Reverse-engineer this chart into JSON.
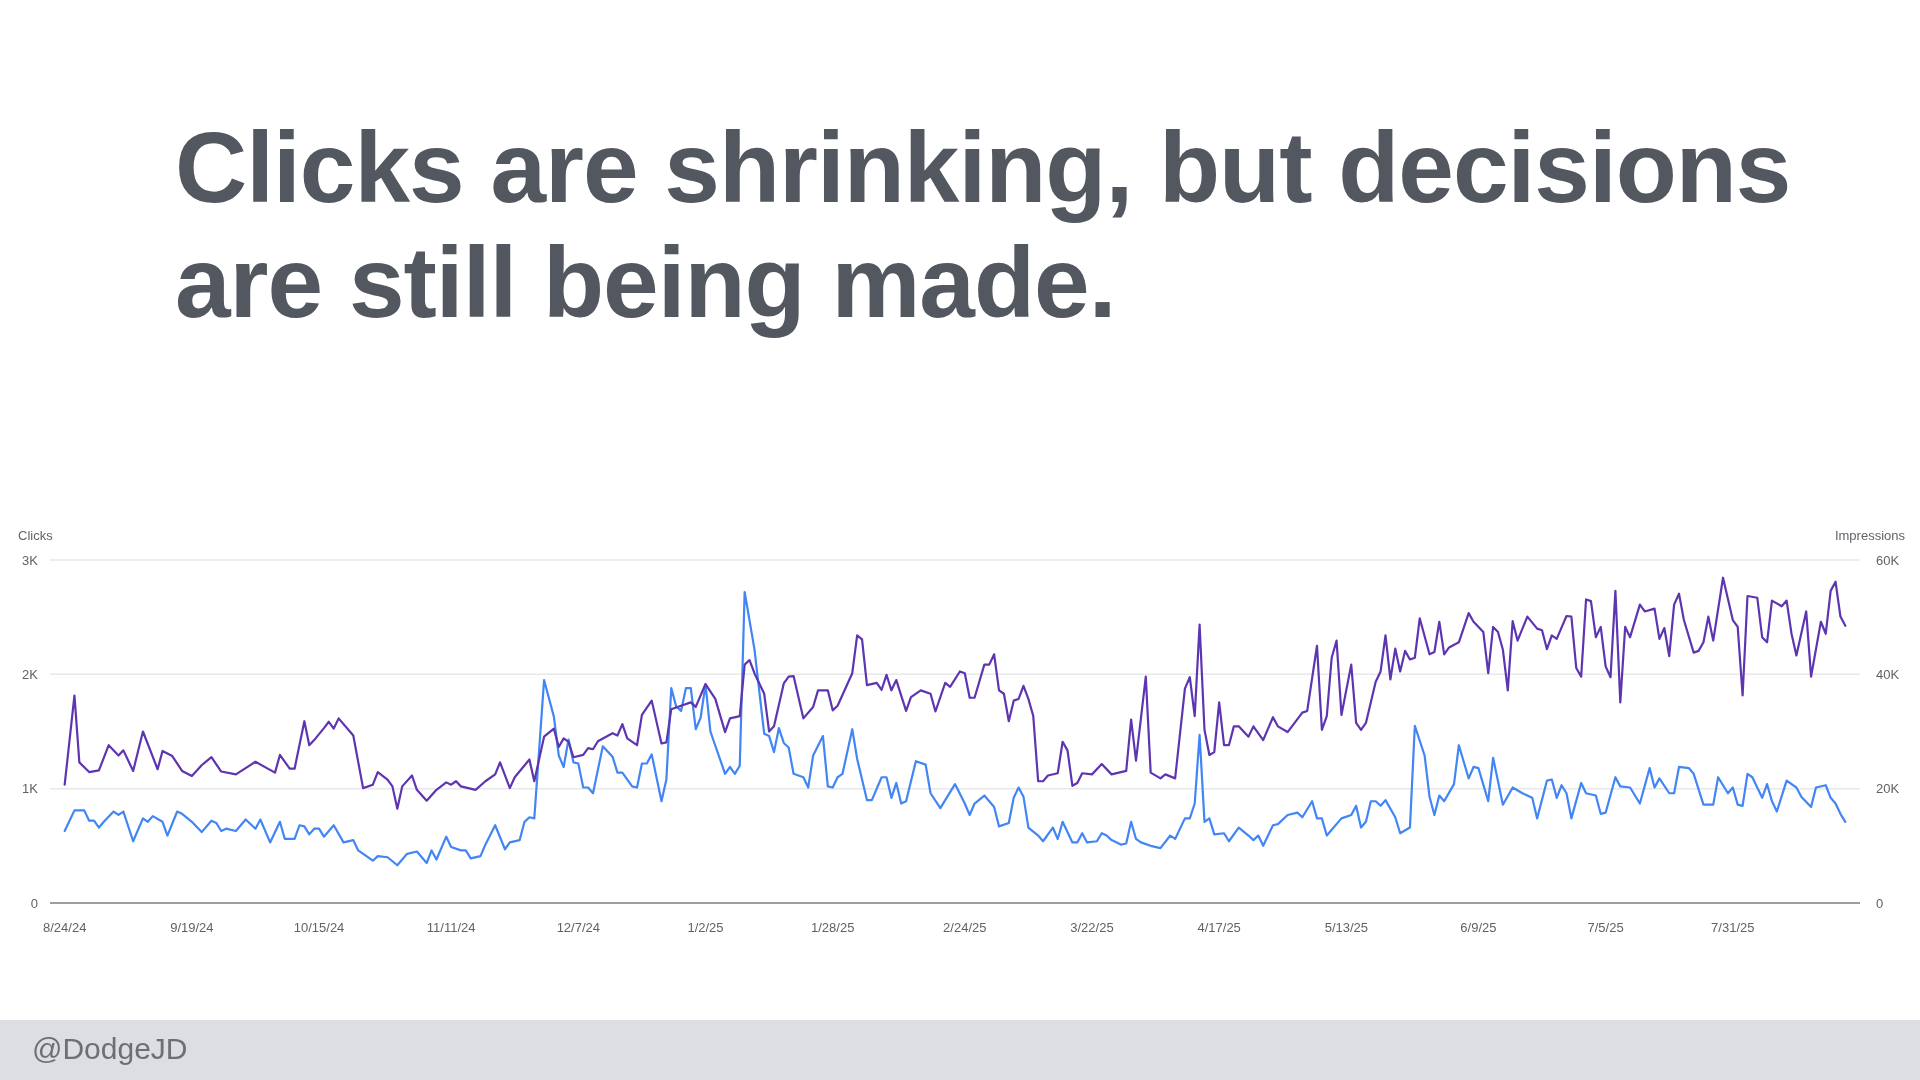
{
  "chart_data": {
    "type": "line",
    "title": "Clicks are shrinking, but decisions are still being made.",
    "ylabel": "Clicks",
    "y2label": "Impressions",
    "xlim": [
      "2024-08-21",
      "2025-08-26"
    ],
    "xticks": [
      {
        "value": "2024-08-24",
        "label": "8/24/24"
      },
      {
        "value": "2024-09-19",
        "label": "9/19/24"
      },
      {
        "value": "2024-10-15",
        "label": "10/15/24"
      },
      {
        "value": "2024-11-11",
        "label": "11/11/24"
      },
      {
        "value": "2024-12-07",
        "label": "12/7/24"
      },
      {
        "value": "2025-01-02",
        "label": "1/2/25"
      },
      {
        "value": "2025-01-28",
        "label": "1/28/25"
      },
      {
        "value": "2025-02-24",
        "label": "2/24/25"
      },
      {
        "value": "2025-03-22",
        "label": "3/22/25"
      },
      {
        "value": "2025-04-17",
        "label": "4/17/25"
      },
      {
        "value": "2025-05-13",
        "label": "5/13/25"
      },
      {
        "value": "2025-06-09",
        "label": "6/9/25"
      },
      {
        "value": "2025-07-05",
        "label": "7/5/25"
      },
      {
        "value": "2025-07-31",
        "label": "7/31/25"
      }
    ],
    "ylim": [
      0,
      3000
    ],
    "yticks": [
      0,
      {
        "value": 1000,
        "label": "1K"
      },
      {
        "value": 2000,
        "label": "2K"
      },
      {
        "value": 3000,
        "label": "3K"
      }
    ],
    "y2lim": [
      0,
      60000
    ],
    "y2ticks": [
      0,
      {
        "value": 20000,
        "label": "20K"
      },
      {
        "value": 40000,
        "label": "40K"
      },
      {
        "value": 60000,
        "label": "60K"
      }
    ],
    "grid": "y",
    "annotations": [
      "@DodgeJD"
    ],
    "series": [
      {
        "color": "#4285f4",
        "x": [
          "2024-08-24",
          "2024-08-26",
          "2024-08-28",
          "2024-08-29",
          "2024-08-30",
          "2024-08-31",
          "2024-09-01",
          "2024-09-03",
          "2024-09-04",
          "2024-09-05",
          "2024-09-07",
          "2024-09-09",
          "2024-09-10",
          "2024-09-11",
          "2024-09-13",
          "2024-09-14",
          "2024-09-16",
          "2024-09-17",
          "2024-09-19",
          "2024-09-21",
          "2024-09-23",
          "2024-09-24",
          "2024-09-25",
          "2024-09-26",
          "2024-09-28",
          "2024-09-30",
          "2024-10-02",
          "2024-10-03",
          "2024-10-05",
          "2024-10-07",
          "2024-10-08",
          "2024-10-10",
          "2024-10-11",
          "2024-10-12",
          "2024-10-13",
          "2024-10-14",
          "2024-10-15",
          "2024-10-16",
          "2024-10-18",
          "2024-10-20",
          "2024-10-22",
          "2024-10-23",
          "2024-10-26",
          "2024-10-27",
          "2024-10-29",
          "2024-10-31",
          "2024-11-02",
          "2024-11-04",
          "2024-11-06",
          "2024-11-07",
          "2024-11-08",
          "2024-11-10",
          "2024-11-11",
          "2024-11-13",
          "2024-11-14",
          "2024-11-15",
          "2024-11-17",
          "2024-11-18",
          "2024-11-20",
          "2024-11-22",
          "2024-11-23",
          "2024-11-25",
          "2024-11-26",
          "2024-11-27",
          "2024-11-28",
          "2024-11-30",
          "2024-12-02",
          "2024-12-03",
          "2024-12-04",
          "2024-12-05",
          "2024-12-06",
          "2024-12-07",
          "2024-12-08",
          "2024-12-09",
          "2024-12-10",
          "2024-12-12",
          "2024-12-14",
          "2024-12-15",
          "2024-12-16",
          "2024-12-18",
          "2024-12-19",
          "2024-12-20",
          "2024-12-21",
          "2024-12-22",
          "2024-12-24",
          "2024-12-25",
          "2024-12-26",
          "2024-12-27",
          "2024-12-28",
          "2024-12-29",
          "2024-12-30",
          "2024-12-31",
          "2025-01-01",
          "2025-01-02",
          "2025-01-03",
          "2025-01-06",
          "2025-01-07",
          "2025-01-08",
          "2025-01-09",
          "2025-01-10",
          "2025-01-12",
          "2025-01-14",
          "2025-01-15",
          "2025-01-16",
          "2025-01-17",
          "2025-01-18",
          "2025-01-19",
          "2025-01-20",
          "2025-01-22",
          "2025-01-23",
          "2025-01-24",
          "2025-01-26",
          "2025-01-27",
          "2025-01-28",
          "2025-01-29",
          "2025-01-30",
          "2025-02-01",
          "2025-02-02",
          "2025-02-04",
          "2025-02-05",
          "2025-02-07",
          "2025-02-08",
          "2025-02-09",
          "2025-02-10",
          "2025-02-11",
          "2025-02-12",
          "2025-02-14",
          "2025-02-16",
          "2025-02-17",
          "2025-02-19",
          "2025-02-20",
          "2025-02-22",
          "2025-02-24",
          "2025-02-25",
          "2025-02-26",
          "2025-02-28",
          "2025-03-02",
          "2025-03-03",
          "2025-03-05",
          "2025-03-06",
          "2025-03-07",
          "2025-03-08",
          "2025-03-09",
          "2025-03-11",
          "2025-03-12",
          "2025-03-14",
          "2025-03-15",
          "2025-03-16",
          "2025-03-18",
          "2025-03-19",
          "2025-03-20",
          "2025-03-21",
          "2025-03-23",
          "2025-03-24",
          "2025-03-25",
          "2025-03-26",
          "2025-03-28",
          "2025-03-29",
          "2025-03-30",
          "2025-03-31",
          "2025-04-01",
          "2025-04-03",
          "2025-04-05",
          "2025-04-07",
          "2025-04-08",
          "2025-04-10",
          "2025-04-11",
          "2025-04-12",
          "2025-04-13",
          "2025-04-14",
          "2025-04-15",
          "2025-04-16",
          "2025-04-18",
          "2025-04-19",
          "2025-04-21",
          "2025-04-23",
          "2025-04-24",
          "2025-04-25",
          "2025-04-26",
          "2025-04-28",
          "2025-04-29",
          "2025-05-01",
          "2025-05-03",
          "2025-05-04",
          "2025-05-06",
          "2025-05-07",
          "2025-05-08",
          "2025-05-09",
          "2025-05-12",
          "2025-05-14",
          "2025-05-15",
          "2025-05-16",
          "2025-05-17",
          "2025-05-18",
          "2025-05-19",
          "2025-05-20",
          "2025-05-21",
          "2025-05-23",
          "2025-05-24",
          "2025-05-26",
          "2025-05-27",
          "2025-05-29",
          "2025-05-30",
          "2025-05-31",
          "2025-06-01",
          "2025-06-02",
          "2025-06-04",
          "2025-06-05",
          "2025-06-07",
          "2025-06-08",
          "2025-06-09",
          "2025-06-11",
          "2025-06-12",
          "2025-06-14",
          "2025-06-16",
          "2025-06-18",
          "2025-06-20",
          "2025-06-21",
          "2025-06-23",
          "2025-06-24",
          "2025-06-25",
          "2025-06-26",
          "2025-06-27",
          "2025-06-28",
          "2025-06-30",
          "2025-07-01",
          "2025-07-03",
          "2025-07-04",
          "2025-07-05",
          "2025-07-07",
          "2025-07-08",
          "2025-07-10",
          "2025-07-12",
          "2025-07-14",
          "2025-07-15",
          "2025-07-16",
          "2025-07-18",
          "2025-07-19",
          "2025-07-20",
          "2025-07-22",
          "2025-07-23",
          "2025-07-25",
          "2025-07-27",
          "2025-07-28",
          "2025-07-30",
          "2025-07-31",
          "2025-08-01",
          "2025-08-02",
          "2025-08-03",
          "2025-08-04",
          "2025-08-06",
          "2025-08-07",
          "2025-08-08",
          "2025-08-09",
          "2025-08-11",
          "2025-08-13",
          "2025-08-14",
          "2025-08-16",
          "2025-08-17",
          "2025-08-19",
          "2025-08-20",
          "2025-08-21",
          "2025-08-22",
          "2025-08-23"
        ],
        "values": [
          630,
          810,
          810,
          720,
          720,
          660,
          710,
          800,
          770,
          800,
          540,
          740,
          710,
          760,
          710,
          590,
          800,
          780,
          710,
          620,
          720,
          700,
          630,
          650,
          630,
          730,
          650,
          730,
          530,
          710,
          560,
          560,
          680,
          670,
          600,
          650,
          650,
          580,
          680,
          530,
          550,
          460,
          370,
          410,
          400,
          330,
          430,
          450,
          350,
          460,
          380,
          580,
          490,
          460,
          460,
          390,
          410,
          510,
          680,
          470,
          530,
          550,
          710,
          750,
          740,
          1950,
          1630,
          1290,
          1190,
          1430,
          1230,
          1220,
          1010,
          1010,
          960,
          1370,
          1280,
          1140,
          1140,
          1020,
          1010,
          1220,
          1220,
          1300,
          890,
          1080,
          1880,
          1720,
          1680,
          1880,
          1880,
          1520,
          1620,
          1910,
          1500,
          1130,
          1190,
          1130,
          1200,
          2720,
          2220,
          1480,
          1460,
          1320,
          1530,
          1400,
          1360,
          1130,
          1100,
          1010,
          1290,
          1460,
          1020,
          1010,
          1100,
          1130,
          1520,
          1260,
          900,
          900,
          1100,
          1100,
          920,
          1050,
          870,
          890,
          1240,
          1210,
          960,
          830,
          900,
          1040,
          870,
          770,
          870,
          940,
          840,
          670,
          700,
          920,
          1010,
          930,
          660,
          590,
          540,
          660,
          560,
          710,
          530,
          530,
          610,
          530,
          540,
          610,
          590,
          550,
          510,
          520,
          710,
          560,
          530,
          500,
          480,
          590,
          560,
          740,
          740,
          870,
          1470,
          710,
          740,
          600,
          610,
          540,
          660,
          590,
          550,
          590,
          500,
          680,
          690,
          770,
          790,
          750,
          890,
          740,
          740,
          590,
          740,
          770,
          850,
          660,
          710,
          890,
          890,
          850,
          900,
          750,
          610,
          660,
          1550,
          1290,
          930,
          770,
          940,
          890,
          1040,
          1380,
          1090,
          1190,
          1180,
          890,
          1270,
          860,
          1010,
          960,
          920,
          740,
          1070,
          1080,
          920,
          1030,
          960,
          740,
          1050,
          960,
          940,
          780,
          790,
          1100,
          1020,
          1010,
          870,
          1180,
          1010,
          1090,
          960,
          960,
          1190,
          1180,
          1130,
          860,
          860,
          1100,
          960,
          1010,
          860,
          850,
          1130,
          1100,
          920,
          1040,
          890,
          800,
          1070,
          1010,
          930,
          840,
          1010,
          1030,
          920,
          870,
          780,
          710
        ]
      },
      {
        "color": "#5e35b1",
        "axis": "y2",
        "x": [
          "2024-08-24",
          "2024-08-26",
          "2024-08-27",
          "2024-08-29",
          "2024-08-31",
          "2024-09-02",
          "2024-09-04",
          "2024-09-05",
          "2024-09-07",
          "2024-09-09",
          "2024-09-12",
          "2024-09-13",
          "2024-09-15",
          "2024-09-17",
          "2024-09-19",
          "2024-09-21",
          "2024-09-23",
          "2024-09-25",
          "2024-09-28",
          "2024-10-02",
          "2024-10-06",
          "2024-10-07",
          "2024-10-09",
          "2024-10-10",
          "2024-10-12",
          "2024-10-13",
          "2024-10-14",
          "2024-10-16",
          "2024-10-17",
          "2024-10-18",
          "2024-10-19",
          "2024-10-22",
          "2024-10-24",
          "2024-10-26",
          "2024-10-27",
          "2024-10-29",
          "2024-10-30",
          "2024-10-31",
          "2024-11-01",
          "2024-11-03",
          "2024-11-04",
          "2024-11-06",
          "2024-11-08",
          "2024-11-10",
          "2024-11-11",
          "2024-11-12",
          "2024-11-13",
          "2024-11-16",
          "2024-11-18",
          "2024-11-20",
          "2024-11-21",
          "2024-11-23",
          "2024-11-24",
          "2024-11-27",
          "2024-11-28",
          "2024-11-30",
          "2024-12-02",
          "2024-12-03",
          "2024-12-04",
          "2024-12-05",
          "2024-12-06",
          "2024-12-08",
          "2024-12-09",
          "2024-12-10",
          "2024-12-11",
          "2024-12-14",
          "2024-12-15",
          "2024-12-16",
          "2024-12-17",
          "2024-12-19",
          "2024-12-20",
          "2024-12-22",
          "2024-12-24",
          "2024-12-25",
          "2024-12-26",
          "2024-12-28",
          "2024-12-30",
          "2024-12-31",
          "2025-01-02",
          "2025-01-04",
          "2025-01-06",
          "2025-01-07",
          "2025-01-09",
          "2025-01-10",
          "2025-01-11",
          "2025-01-12",
          "2025-01-14",
          "2025-01-15",
          "2025-01-16",
          "2025-01-18",
          "2025-01-19",
          "2025-01-20",
          "2025-01-22",
          "2025-01-24",
          "2025-01-25",
          "2025-01-27",
          "2025-01-28",
          "2025-01-29",
          "2025-02-01",
          "2025-02-02",
          "2025-02-03",
          "2025-02-04",
          "2025-02-06",
          "2025-02-07",
          "2025-02-08",
          "2025-02-09",
          "2025-02-10",
          "2025-02-12",
          "2025-02-13",
          "2025-02-15",
          "2025-02-17",
          "2025-02-18",
          "2025-02-20",
          "2025-02-21",
          "2025-02-23",
          "2025-02-24",
          "2025-02-25",
          "2025-02-26",
          "2025-02-28",
          "2025-03-01",
          "2025-03-02",
          "2025-03-03",
          "2025-03-04",
          "2025-03-05",
          "2025-03-06",
          "2025-03-07",
          "2025-03-08",
          "2025-03-09",
          "2025-03-10",
          "2025-03-11",
          "2025-03-12",
          "2025-03-13",
          "2025-03-15",
          "2025-03-16",
          "2025-03-17",
          "2025-03-18",
          "2025-03-19",
          "2025-03-20",
          "2025-03-22",
          "2025-03-24",
          "2025-03-26",
          "2025-03-29",
          "2025-03-30",
          "2025-03-31",
          "2025-04-02",
          "2025-04-03",
          "2025-04-05",
          "2025-04-06",
          "2025-04-08",
          "2025-04-10",
          "2025-04-11",
          "2025-04-12",
          "2025-04-13",
          "2025-04-14",
          "2025-04-15",
          "2025-04-16",
          "2025-04-17",
          "2025-04-18",
          "2025-04-19",
          "2025-04-20",
          "2025-04-21",
          "2025-04-23",
          "2025-04-24",
          "2025-04-26",
          "2025-04-28",
          "2025-04-29",
          "2025-05-01",
          "2025-05-04",
          "2025-05-05",
          "2025-05-07",
          "2025-05-08",
          "2025-05-09",
          "2025-05-10",
          "2025-05-11",
          "2025-05-12",
          "2025-05-14",
          "2025-05-15",
          "2025-05-16",
          "2025-05-17",
          "2025-05-19",
          "2025-05-20",
          "2025-05-21",
          "2025-05-22",
          "2025-05-23",
          "2025-05-24",
          "2025-05-25",
          "2025-05-26",
          "2025-05-27",
          "2025-05-28",
          "2025-05-30",
          "2025-05-31",
          "2025-06-01",
          "2025-06-02",
          "2025-06-03",
          "2025-06-05",
          "2025-06-07",
          "2025-06-08",
          "2025-06-10",
          "2025-06-11",
          "2025-06-12",
          "2025-06-13",
          "2025-06-14",
          "2025-06-15",
          "2025-06-16",
          "2025-06-17",
          "2025-06-19",
          "2025-06-21",
          "2025-06-22",
          "2025-06-23",
          "2025-06-24",
          "2025-06-25",
          "2025-06-27",
          "2025-06-28",
          "2025-06-29",
          "2025-06-30",
          "2025-07-01",
          "2025-07-02",
          "2025-07-03",
          "2025-07-04",
          "2025-07-05",
          "2025-07-06",
          "2025-07-07",
          "2025-07-08",
          "2025-07-09",
          "2025-07-10",
          "2025-07-12",
          "2025-07-13",
          "2025-07-15",
          "2025-07-16",
          "2025-07-17",
          "2025-07-18",
          "2025-07-19",
          "2025-07-20",
          "2025-07-21",
          "2025-07-23",
          "2025-07-24",
          "2025-07-25",
          "2025-07-26",
          "2025-07-27",
          "2025-07-29",
          "2025-07-31",
          "2025-08-01",
          "2025-08-02",
          "2025-08-03",
          "2025-08-05",
          "2025-08-06",
          "2025-08-07",
          "2025-08-08",
          "2025-08-10",
          "2025-08-11",
          "2025-08-12",
          "2025-08-13",
          "2025-08-15",
          "2025-08-16",
          "2025-08-18",
          "2025-08-19",
          "2025-08-20",
          "2025-08-21",
          "2025-08-22",
          "2025-08-23"
        ],
        "values": [
          20700,
          36300,
          24600,
          22900,
          23200,
          27600,
          25800,
          26700,
          23100,
          30000,
          23400,
          26600,
          25700,
          23100,
          22200,
          24100,
          25500,
          23000,
          22500,
          24700,
          22800,
          25900,
          23500,
          23500,
          31800,
          27600,
          28500,
          30600,
          31700,
          30500,
          32300,
          29300,
          20100,
          20700,
          22900,
          21600,
          20400,
          16500,
          20400,
          22300,
          19800,
          17900,
          19800,
          21100,
          20700,
          21300,
          20400,
          19800,
          21300,
          22500,
          24600,
          20100,
          22000,
          25100,
          21300,
          29100,
          30500,
          27300,
          28800,
          28200,
          25500,
          25900,
          27100,
          26900,
          28300,
          29700,
          29300,
          31300,
          28800,
          27600,
          32900,
          35400,
          27900,
          28100,
          33900,
          34500,
          35100,
          34300,
          38300,
          35700,
          29900,
          32300,
          32700,
          41700,
          42500,
          40200,
          36600,
          30000,
          30900,
          38400,
          39600,
          39700,
          32300,
          34300,
          37200,
          37200,
          33700,
          34500,
          40200,
          46800,
          46100,
          38100,
          38500,
          37300,
          39900,
          37200,
          39000,
          33600,
          36000,
          37200,
          36600,
          33500,
          38500,
          37800,
          40500,
          40200,
          35900,
          35900,
          41700,
          41700,
          43500,
          37200,
          36600,
          31800,
          35400,
          35700,
          38000,
          35700,
          32700,
          21300,
          21300,
          22300,
          22700,
          28200,
          26700,
          20500,
          21000,
          22700,
          22500,
          24300,
          22500,
          23100,
          32100,
          24900,
          39600,
          22800,
          21800,
          22500,
          21800,
          37500,
          39500,
          32700,
          48700,
          30300,
          25900,
          26400,
          35100,
          27600,
          27600,
          30900,
          30900,
          29100,
          30900,
          28500,
          32500,
          30900,
          29900,
          33300,
          33600,
          45000,
          30300,
          32700,
          42900,
          45900,
          32900,
          41700,
          31500,
          30300,
          31500,
          38700,
          40500,
          46800,
          39100,
          44500,
          40500,
          44100,
          42600,
          42900,
          49800,
          43500,
          43900,
          49200,
          43500,
          44700,
          45600,
          50700,
          49200,
          47400,
          40200,
          48300,
          47400,
          44300,
          37200,
          49300,
          45900,
          50100,
          48000,
          47700,
          44400,
          46800,
          46200,
          50200,
          50100,
          41100,
          39600,
          53100,
          52800,
          46500,
          48300,
          41400,
          39500,
          54600,
          35100,
          48300,
          46500,
          52200,
          51000,
          51500,
          46200,
          48100,
          43200,
          52200,
          54100,
          49500,
          43800,
          44100,
          45600,
          50100,
          45900,
          56900,
          49500,
          48300,
          36300,
          53700,
          53400,
          46500,
          45600,
          52900,
          51900,
          52900,
          47100,
          43300,
          51000,
          39600,
          49200,
          47100,
          54600,
          56200,
          50100,
          48500
        ]
      }
    ]
  }
}
